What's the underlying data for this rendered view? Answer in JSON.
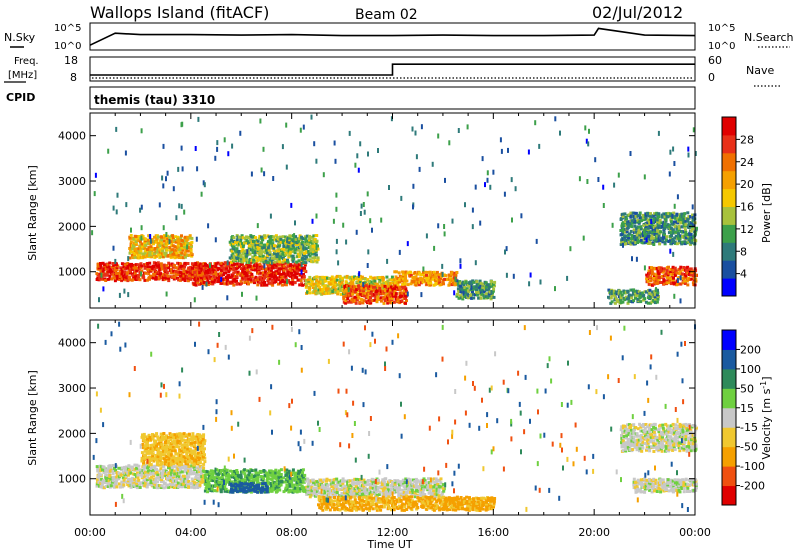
{
  "header": {
    "station": "Wallops Island (fitACF)",
    "beam": "Beam 02",
    "date": "02/Jul/2012"
  },
  "strip": {
    "nsky_label": "N.Sky",
    "nsearch_label": "N.Search",
    "freq_label_1": "Freq.",
    "freq_label_2": "[MHz]",
    "nave_label": "Nave",
    "cpid_label": "CPID",
    "cpid_value": "themis (tau) 3310",
    "noise_left_ticks": [
      "10^5",
      "10^0"
    ],
    "noise_right_ticks": [
      "10^5",
      "10^0"
    ],
    "freq_ticks": [
      "18",
      "8"
    ],
    "nave_ticks": [
      "60",
      "0"
    ]
  },
  "chart_data": [
    {
      "type": "line",
      "title": "N.Sky",
      "x": [
        "00:00",
        "01:00",
        "02:00",
        "04:00",
        "06:00",
        "08:00",
        "10:00",
        "12:00",
        "14:00",
        "16:00",
        "18:00",
        "20:00",
        "20:10",
        "22:00",
        "24:00"
      ],
      "values": [
        0.8,
        3.3,
        3.0,
        3.0,
        2.9,
        3.0,
        2.8,
        2.8,
        2.9,
        2.8,
        2.8,
        2.9,
        4.3,
        2.9,
        2.8
      ],
      "ylim": [
        0,
        5
      ],
      "scale": "log10"
    },
    {
      "type": "line",
      "title": "Freq. [MHz]",
      "x": [
        "00:00",
        "12:00",
        "12:00",
        "24:00"
      ],
      "values": [
        10.5,
        10.5,
        15,
        15
      ],
      "ylim": [
        8,
        18
      ],
      "nave_note": "dotted Nave trace near 0"
    },
    {
      "type": "heatmap",
      "title": "Power",
      "xlabel": "",
      "ylabel": "Slant Range [km]",
      "x_ticks": [
        "00:00",
        "04:00",
        "08:00",
        "12:00",
        "16:00",
        "20:00",
        "00:00"
      ],
      "y_ticks": [
        1000,
        2000,
        3000,
        4000
      ],
      "ylim": [
        200,
        4500
      ],
      "colorbar": {
        "label": "Power [dB]",
        "ticks": [
          4,
          8,
          12,
          16,
          20,
          24,
          28
        ],
        "range": [
          0,
          30
        ]
      },
      "regions": [
        {
          "t0": 0.2,
          "t1": 4.5,
          "r0": 800,
          "r1": 1200,
          "value": 26
        },
        {
          "t0": 1.5,
          "t1": 4.0,
          "r0": 1300,
          "r1": 1800,
          "value": 18
        },
        {
          "t0": 4.0,
          "t1": 8.5,
          "r0": 700,
          "r1": 1200,
          "value": 27
        },
        {
          "t0": 5.5,
          "t1": 9.0,
          "r0": 1200,
          "r1": 1800,
          "value": 12
        },
        {
          "t0": 8.5,
          "t1": 12.0,
          "r0": 500,
          "r1": 900,
          "value": 16
        },
        {
          "t0": 10.0,
          "t1": 12.5,
          "r0": 300,
          "r1": 700,
          "value": 24
        },
        {
          "t0": 12.0,
          "t1": 14.5,
          "r0": 700,
          "r1": 1000,
          "value": 20
        },
        {
          "t0": 14.5,
          "t1": 16.0,
          "r0": 400,
          "r1": 800,
          "value": 10
        },
        {
          "t0": 21.0,
          "t1": 24.0,
          "r0": 1600,
          "r1": 2300,
          "value": 9
        },
        {
          "t0": 22.0,
          "t1": 24.0,
          "r0": 700,
          "r1": 1100,
          "value": 24
        },
        {
          "t0": 20.5,
          "t1": 22.5,
          "r0": 300,
          "r1": 600,
          "value": 10
        }
      ]
    },
    {
      "type": "heatmap",
      "title": "Velocity",
      "xlabel": "Time UT",
      "ylabel": "Slant Range [km]",
      "x_ticks": [
        "00:00",
        "04:00",
        "08:00",
        "12:00",
        "16:00",
        "20:00",
        "00:00"
      ],
      "y_ticks": [
        1000,
        2000,
        3000,
        4000
      ],
      "ylim": [
        200,
        4500
      ],
      "colorbar": {
        "label": "Velocity [m s⁻¹]",
        "ticks": [
          200,
          100,
          50,
          15,
          -15,
          -50,
          -100,
          -200
        ],
        "range": [
          -250,
          250
        ]
      },
      "regions": [
        {
          "t0": 0.2,
          "t1": 4.5,
          "r0": 800,
          "r1": 1300,
          "value": 0
        },
        {
          "t0": 2.0,
          "t1": 4.5,
          "r0": 1300,
          "r1": 2000,
          "value": -40
        },
        {
          "t0": 4.5,
          "t1": 8.5,
          "r0": 700,
          "r1": 1200,
          "value": 40
        },
        {
          "t0": 5.5,
          "t1": 7.0,
          "r0": 700,
          "r1": 900,
          "value": 150
        },
        {
          "t0": 8.5,
          "t1": 14.0,
          "r0": 600,
          "r1": 1000,
          "value": 0
        },
        {
          "t0": 9.0,
          "t1": 16.0,
          "r0": 300,
          "r1": 600,
          "value": -60
        },
        {
          "t0": 21.0,
          "t1": 24.0,
          "r0": 1600,
          "r1": 2200,
          "value": 0
        },
        {
          "t0": 21.5,
          "t1": 24.0,
          "r0": 700,
          "r1": 1000,
          "value": 0
        }
      ]
    }
  ],
  "axes": {
    "x_ticks": [
      "00:00",
      "04:00",
      "08:00",
      "12:00",
      "16:00",
      "20:00",
      "00:00"
    ],
    "xlabel": "Time UT",
    "y_ticks": [
      "1000",
      "2000",
      "3000",
      "4000"
    ],
    "ylabel": "Slant Range [km]",
    "power_label": "Power [dB]",
    "power_ticks": [
      "28",
      "24",
      "20",
      "16",
      "12",
      "8",
      "4"
    ],
    "velocity_label": "Velocity [m s",
    "velocity_sup": "-1",
    "velocity_close": "]",
    "velocity_ticks": [
      "200",
      "100",
      "50",
      "15",
      "-15",
      "-50",
      "-100",
      "-200"
    ]
  },
  "colors": {
    "power_scale": [
      "#0000ff",
      "#1a4fa0",
      "#2e7a7a",
      "#3ca04a",
      "#a8c23c",
      "#f5c800",
      "#f5a000",
      "#f07000",
      "#e83018",
      "#e00000"
    ],
    "velocity_scale": [
      "#e00000",
      "#f05010",
      "#f5a000",
      "#f0c830",
      "#c8c8c8",
      "#6fd040",
      "#2e8a5a",
      "#1a5aa0",
      "#0000ff"
    ]
  }
}
